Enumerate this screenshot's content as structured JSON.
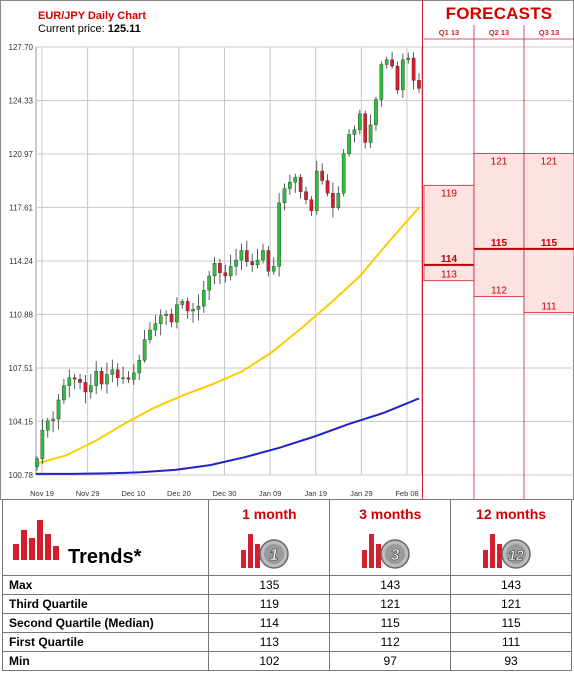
{
  "header": {
    "title": "EUR/JPY Daily Chart",
    "price_label": "Current price:",
    "price_value": "125.11"
  },
  "forecast": {
    "title": "FORECASTS",
    "columns": [
      "Q1 13",
      "Q2 13",
      "Q3 13"
    ],
    "bands": [
      {
        "upper": 119,
        "lower": 113,
        "median": 114,
        "upper_label": "119",
        "median_label": "114",
        "lower_label": "113"
      },
      {
        "upper": 121,
        "lower": 112,
        "median": 115,
        "upper_label": "121",
        "median_label": "115",
        "lower_label": "112"
      },
      {
        "upper": 121,
        "lower": 111,
        "median": 115,
        "upper_label": "121",
        "median_label": "115",
        "lower_label": "111"
      }
    ]
  },
  "chart_data": {
    "type": "candlestick",
    "title": "EUR/JPY Daily Chart",
    "ylim": [
      100.78,
      127.7
    ],
    "y_ticks": [
      "127.70",
      "124.33",
      "120.97",
      "117.61",
      "114.24",
      "110.88",
      "107.51",
      "104.15",
      "100.78"
    ],
    "x_ticks": [
      "Nov 19",
      "Nov 29",
      "Dec 10",
      "Dec 20",
      "Dec 30",
      "Jan 09",
      "Jan 19",
      "Jan 29",
      "Feb 08"
    ],
    "grid": true,
    "colors": {
      "up": "#2bbf3a",
      "down": "#d41e2e",
      "ma_short": "#ffcc00",
      "ma_long": "#2222cc"
    },
    "candles_close": [
      101.8,
      103.6,
      104.2,
      104.3,
      105.5,
      106.4,
      106.9,
      106.8,
      106.6,
      106.0,
      106.4,
      107.3,
      106.5,
      107.1,
      107.4,
      106.9,
      106.9,
      106.8,
      107.2,
      108.0,
      109.3,
      109.9,
      110.3,
      110.8,
      110.9,
      110.4,
      111.5,
      111.7,
      111.1,
      111.2,
      111.4,
      112.4,
      113.3,
      114.1,
      113.5,
      113.3,
      113.9,
      114.3,
      114.9,
      114.2,
      114.0,
      114.3,
      114.9,
      113.6,
      113.9,
      117.9,
      118.8,
      119.2,
      119.5,
      118.6,
      118.1,
      117.4,
      119.9,
      119.3,
      118.5,
      117.6,
      118.5,
      121.0,
      122.2,
      122.5,
      123.5,
      121.7,
      122.8,
      124.4,
      126.6,
      126.9,
      126.5,
      125.0,
      126.9,
      127.0,
      125.6,
      125.1
    ],
    "moving_average_short": [
      101.5,
      102.0,
      102.9,
      104.0,
      105.0,
      105.8,
      106.5,
      107.3,
      108.5,
      110.0,
      111.6,
      113.3,
      115.5,
      117.6
    ],
    "moving_average_long": [
      100.85,
      100.85,
      100.88,
      100.95,
      101.1,
      101.4,
      101.9,
      102.5,
      103.2,
      104.0,
      104.7,
      105.6
    ],
    "forecast_periods": [
      "Q1 13",
      "Q2 13",
      "Q3 13"
    ]
  },
  "trends": {
    "title": "Trends*",
    "columns": [
      {
        "label": "1 month",
        "badge": "1"
      },
      {
        "label": "3 months",
        "badge": "3"
      },
      {
        "label": "12 months",
        "badge": "12"
      }
    ],
    "rows": [
      {
        "label": "Max",
        "values": [
          "135",
          "143",
          "143"
        ]
      },
      {
        "label": "Third Quartile",
        "values": [
          "119",
          "121",
          "121"
        ]
      },
      {
        "label": "Second Quartile (Median)",
        "values": [
          "114",
          "115",
          "115"
        ]
      },
      {
        "label": "First Quartile",
        "values": [
          "113",
          "112",
          "111"
        ]
      },
      {
        "label": "Min",
        "values": [
          "102",
          "97",
          "93"
        ]
      }
    ]
  }
}
